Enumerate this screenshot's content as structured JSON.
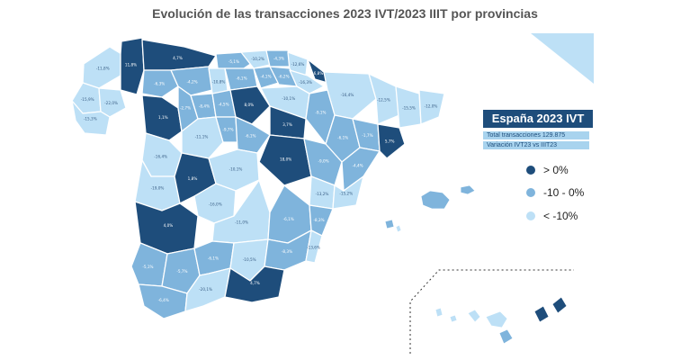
{
  "title": "Evolución de las transacciones 2023 IVT/2023 IIIT por provincias",
  "colors": {
    "dark": "#1e4d7b",
    "medium": "#7fb4dc",
    "light": "#bde0f6",
    "border": "#ffffff"
  },
  "panel": {
    "title": "España 2023 IVT",
    "total": "Total transacciones 129.875",
    "variation": "Variación IVT23 vs IIIT23"
  },
  "legend": [
    {
      "label": "> 0%",
      "color": "#1e4d7b"
    },
    {
      "label": "-10 - 0%",
      "color": "#7fb4dc"
    },
    {
      "label": "< -10%",
      "color": "#bde0f6"
    }
  ],
  "provinces": [
    {
      "label": "-11,8%",
      "cls": "light"
    },
    {
      "label": "11,8%",
      "cls": "dark"
    },
    {
      "label": "4,7%",
      "cls": "dark"
    },
    {
      "label": "-5,1%",
      "cls": "medium"
    },
    {
      "label": "-10,2%",
      "cls": "light"
    },
    {
      "label": "-4,3%",
      "cls": "medium"
    },
    {
      "label": "-12,6%",
      "cls": "light"
    },
    {
      "label": "-15,9%",
      "cls": "light"
    },
    {
      "label": "-22,0%",
      "cls": "light"
    },
    {
      "label": "-6,3%",
      "cls": "medium"
    },
    {
      "label": "-4,2%",
      "cls": "medium"
    },
    {
      "label": "-10,8%",
      "cls": "light"
    },
    {
      "label": "-6,1%",
      "cls": "medium"
    },
    {
      "label": "-4,1%",
      "cls": "medium"
    },
    {
      "label": "-6,2%",
      "cls": "medium"
    },
    {
      "label": "-16,3%",
      "cls": "light"
    },
    {
      "label": "6,8%",
      "cls": "dark"
    },
    {
      "label": "-16,4%",
      "cls": "light"
    },
    {
      "label": "-12,5%",
      "cls": "light"
    },
    {
      "label": "-15,5%",
      "cls": "light"
    },
    {
      "label": "-12,0%",
      "cls": "light"
    },
    {
      "label": "-15,3%",
      "cls": "light"
    },
    {
      "label": "1,1%",
      "cls": "dark"
    },
    {
      "label": "-2,7%",
      "cls": "medium"
    },
    {
      "label": "-8,4%",
      "cls": "medium"
    },
    {
      "label": "-4,5%",
      "cls": "medium"
    },
    {
      "label": "8,0%",
      "cls": "dark"
    },
    {
      "label": "-10,1%",
      "cls": "light"
    },
    {
      "label": "-9,1%",
      "cls": "medium"
    },
    {
      "label": "-6,1%",
      "cls": "medium"
    },
    {
      "label": "-1,7%",
      "cls": "medium"
    },
    {
      "label": "5,7%",
      "cls": "dark"
    },
    {
      "label": "-16,4%",
      "cls": "light"
    },
    {
      "label": "-11,1%",
      "cls": "light"
    },
    {
      "label": "-9,7%",
      "cls": "medium"
    },
    {
      "label": "-6,1%",
      "cls": "medium"
    },
    {
      "label": "3,7%",
      "cls": "dark"
    },
    {
      "label": "18,0%",
      "cls": "dark"
    },
    {
      "label": "-9,0%",
      "cls": "medium"
    },
    {
      "label": "-4,4%",
      "cls": "medium"
    },
    {
      "label": "-19,0%",
      "cls": "light"
    },
    {
      "label": "1,8%",
      "cls": "dark"
    },
    {
      "label": "-10,1%",
      "cls": "light"
    },
    {
      "label": "-13,2%",
      "cls": "light"
    },
    {
      "label": "-15,2%",
      "cls": "light"
    },
    {
      "label": "4,0%",
      "cls": "dark"
    },
    {
      "label": "-16,0%",
      "cls": "light"
    },
    {
      "label": "-11,0%",
      "cls": "light"
    },
    {
      "label": "-6,1%",
      "cls": "medium"
    },
    {
      "label": "-8,3%",
      "cls": "medium"
    },
    {
      "label": "-5,1%",
      "cls": "medium"
    },
    {
      "label": "-5,7%",
      "cls": "medium"
    },
    {
      "label": "-6,1%",
      "cls": "medium"
    },
    {
      "label": "-10,5%",
      "cls": "light"
    },
    {
      "label": "-8,3%",
      "cls": "medium"
    },
    {
      "label": "-13,6%",
      "cls": "light"
    },
    {
      "label": "-6,4%",
      "cls": "medium"
    },
    {
      "label": "-20,1%",
      "cls": "light"
    },
    {
      "label": "4,7%",
      "cls": "dark"
    }
  ]
}
